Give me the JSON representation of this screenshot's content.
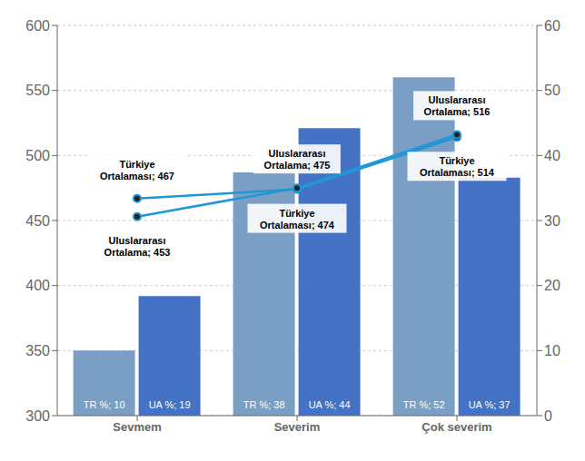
{
  "chart_data": {
    "type": "bar",
    "categories": [
      "Sevmem",
      "Severim",
      "Çok severim"
    ],
    "series": [
      {
        "type": "bar",
        "color": "#7b9fc4",
        "values": [
          350,
          487,
          560
        ],
        "annotations": [
          "TR %; 10",
          "TR %; 38",
          "TR %; 52"
        ]
      },
      {
        "type": "bar",
        "color": "#4472c4",
        "values": [
          392,
          521,
          483
        ],
        "annotations": [
          "UA %; 19",
          "UA %; 44",
          "UA %; 37"
        ]
      },
      {
        "type": "line",
        "color": "#2196d4",
        "marker": "circle",
        "values": [
          467,
          474,
          514
        ],
        "value_labels": [
          "Türkiye\nOrtalaması; 467",
          "Türkiye\nOrtalaması; 474",
          "Türkiye\nOrtalaması; 514"
        ]
      },
      {
        "type": "line",
        "color": "#2196d4",
        "marker": "circle",
        "values": [
          453,
          475,
          516
        ],
        "value_labels": [
          "Uluslararası\nOrtalama; 453",
          "Uluslararası\nOrtalama; 475",
          "Uluslararası\nOrtalama; 516"
        ]
      }
    ],
    "ylim": [
      300,
      600
    ],
    "yticks": [
      300,
      350,
      400,
      450,
      500,
      550,
      600
    ],
    "y2lim": [
      0,
      60
    ],
    "y2ticks": [
      0,
      10,
      20,
      30,
      40,
      50,
      60
    ],
    "grid": true
  }
}
